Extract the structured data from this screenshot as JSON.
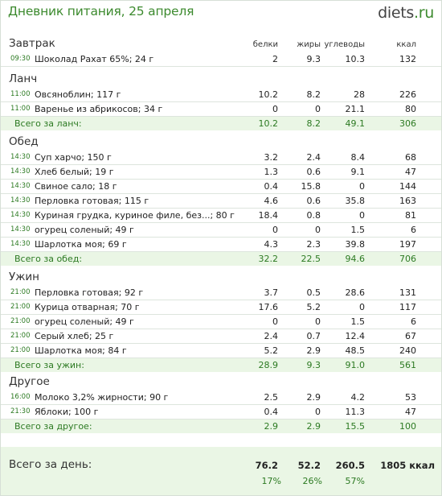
{
  "header": {
    "title": "Дневник питания, 25 апреля",
    "logo_main": "diets",
    "logo_dot": ".",
    "logo_tld": "ru"
  },
  "columns": {
    "protein": "белки",
    "fat": "жиры",
    "carbs": "углеводы",
    "kcal": "ккал"
  },
  "meals": [
    {
      "title": "Завтрак",
      "items": [
        {
          "time": "09:30",
          "name": "Шоколад Рахат 65%; 24 г",
          "protein": "2",
          "fat": "9.3",
          "carbs": "10.3",
          "kcal": "132"
        }
      ]
    },
    {
      "title": "Ланч",
      "items": [
        {
          "time": "11:00",
          "name": "Овсяноблин; 117 г",
          "protein": "10.2",
          "fat": "8.2",
          "carbs": "28",
          "kcal": "226"
        },
        {
          "time": "11:00",
          "name": "Варенье из абрикосов; 34 г",
          "protein": "0",
          "fat": "0",
          "carbs": "21.1",
          "kcal": "80"
        }
      ],
      "total": {
        "label": "Всего за ланч:",
        "protein": "10.2",
        "fat": "8.2",
        "carbs": "49.1",
        "kcal": "306"
      }
    },
    {
      "title": "Обед",
      "items": [
        {
          "time": "14:30",
          "name": "Суп харчо; 150 г",
          "protein": "3.2",
          "fat": "2.4",
          "carbs": "8.4",
          "kcal": "68"
        },
        {
          "time": "14:30",
          "name": "Хлеб белый; 19 г",
          "protein": "1.3",
          "fat": "0.6",
          "carbs": "9.1",
          "kcal": "47"
        },
        {
          "time": "14:30",
          "name": "Свиное сало; 18 г",
          "protein": "0.4",
          "fat": "15.8",
          "carbs": "0",
          "kcal": "144"
        },
        {
          "time": "14:30",
          "name": "Перловка готовая; 115 г",
          "protein": "4.6",
          "fat": "0.6",
          "carbs": "35.8",
          "kcal": "163"
        },
        {
          "time": "14:30",
          "name": "Куриная грудка, куриное филе, без...; 80 г",
          "protein": "18.4",
          "fat": "0.8",
          "carbs": "0",
          "kcal": "81"
        },
        {
          "time": "14:30",
          "name": "огурец соленый; 49 г",
          "protein": "0",
          "fat": "0",
          "carbs": "1.5",
          "kcal": "6"
        },
        {
          "time": "14:30",
          "name": "Шарлотка моя; 69 г",
          "protein": "4.3",
          "fat": "2.3",
          "carbs": "39.8",
          "kcal": "197"
        }
      ],
      "total": {
        "label": "Всего за обед:",
        "protein": "32.2",
        "fat": "22.5",
        "carbs": "94.6",
        "kcal": "706"
      }
    },
    {
      "title": "Ужин",
      "items": [
        {
          "time": "21:00",
          "name": "Перловка готовая; 92 г",
          "protein": "3.7",
          "fat": "0.5",
          "carbs": "28.6",
          "kcal": "131"
        },
        {
          "time": "21:00",
          "name": "Курица отварная; 70 г",
          "protein": "17.6",
          "fat": "5.2",
          "carbs": "0",
          "kcal": "117"
        },
        {
          "time": "21:00",
          "name": "огурец соленый; 49 г",
          "protein": "0",
          "fat": "0",
          "carbs": "1.5",
          "kcal": "6"
        },
        {
          "time": "21:00",
          "name": "Серый хлеб; 25 г",
          "protein": "2.4",
          "fat": "0.7",
          "carbs": "12.4",
          "kcal": "67"
        },
        {
          "time": "21:00",
          "name": "Шарлотка моя; 84 г",
          "protein": "5.2",
          "fat": "2.9",
          "carbs": "48.5",
          "kcal": "240"
        }
      ],
      "total": {
        "label": "Всего за ужин:",
        "protein": "28.9",
        "fat": "9.3",
        "carbs": "91.0",
        "kcal": "561"
      }
    },
    {
      "title": "Другое",
      "items": [
        {
          "time": "16:00",
          "name": "Молоко 3,2% жирности; 90 г",
          "protein": "2.5",
          "fat": "2.9",
          "carbs": "4.2",
          "kcal": "53"
        },
        {
          "time": "21:30",
          "name": "Яблоки; 100 г",
          "protein": "0.4",
          "fat": "0",
          "carbs": "11.3",
          "kcal": "47"
        }
      ],
      "total": {
        "label": "Всего за другое:",
        "protein": "2.9",
        "fat": "2.9",
        "carbs": "15.5",
        "kcal": "100"
      }
    }
  ],
  "day_total": {
    "label": "Всего за день:",
    "protein": "76.2",
    "fat": "52.2",
    "carbs": "260.5",
    "kcal": "1805 ккал",
    "protein_pct": "17%",
    "fat_pct": "26%",
    "carbs_pct": "57%"
  }
}
